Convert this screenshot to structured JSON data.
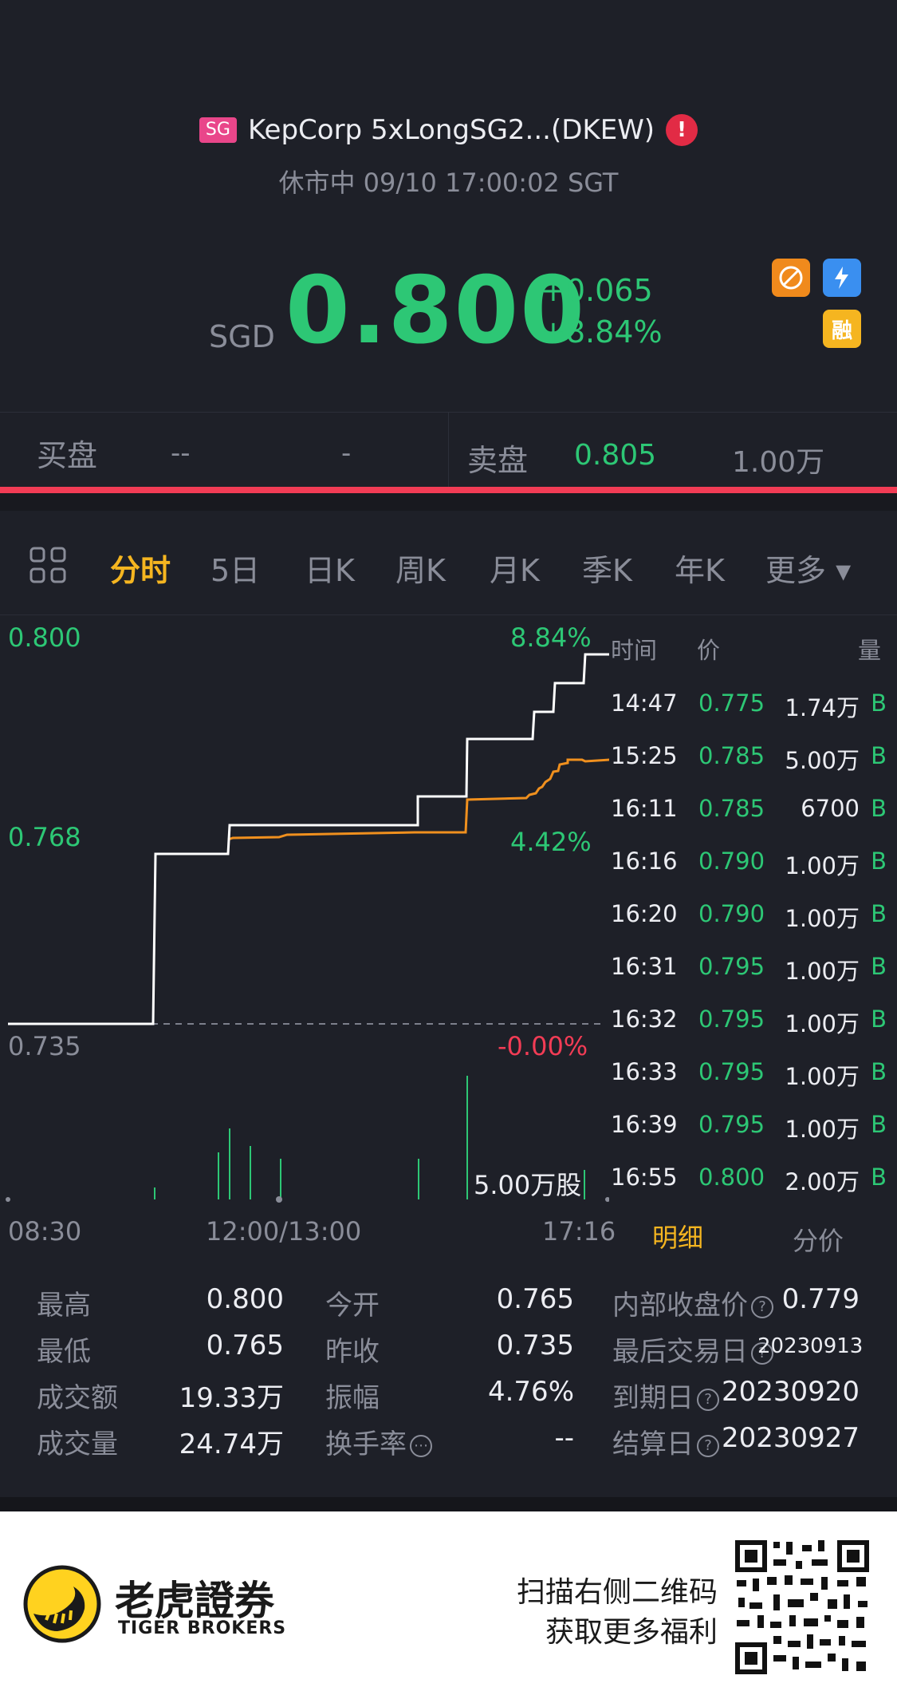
{
  "header": {
    "market_badge": "SG",
    "stock_name": "KepCorp 5xLongSG2...(DKEW)",
    "alert_icon": "alert-icon",
    "status": "休市中 09/10 17:00:02 SGT"
  },
  "quote": {
    "currency": "SGD",
    "price": "0.800",
    "change": "+0.065",
    "change_pct": "+8.84%",
    "icons": [
      "no-short-icon",
      "lightning-icon",
      "margin-icon"
    ],
    "margin_label": "融"
  },
  "order_book": {
    "bid_label": "买盘",
    "bid_price": "--",
    "bid_size": "-",
    "ask_label": "卖盘",
    "ask_price": "0.805",
    "ask_size": "1.00万"
  },
  "tabs": [
    {
      "label": "分时",
      "active": true
    },
    {
      "label": "5日"
    },
    {
      "label": "日K"
    },
    {
      "label": "周K"
    },
    {
      "label": "月K"
    },
    {
      "label": "季K"
    },
    {
      "label": "年K"
    },
    {
      "label": "更多 ▾"
    }
  ],
  "chart_data": {
    "type": "line",
    "y_left_labels": [
      "0.800",
      "0.768",
      "0.735"
    ],
    "y_right_labels": [
      "8.84%",
      "4.42%",
      "-0.00%"
    ],
    "x_labels": [
      "08:30",
      "12:00/13:00",
      "17:16"
    ],
    "volume_label": "5.00万股",
    "prev_close": 0.735,
    "ylim": [
      0.735,
      0.8
    ]
  },
  "trades": {
    "headers": {
      "time": "时间",
      "price": "价",
      "volume": "量"
    },
    "rows": [
      {
        "time": "14:47",
        "price": "0.775",
        "volume": "1.74万",
        "side": "B"
      },
      {
        "time": "15:25",
        "price": "0.785",
        "volume": "5.00万",
        "side": "B"
      },
      {
        "time": "16:11",
        "price": "0.785",
        "volume": "6700",
        "side": "B"
      },
      {
        "time": "16:16",
        "price": "0.790",
        "volume": "1.00万",
        "side": "B"
      },
      {
        "time": "16:20",
        "price": "0.790",
        "volume": "1.00万",
        "side": "B"
      },
      {
        "time": "16:31",
        "price": "0.795",
        "volume": "1.00万",
        "side": "B"
      },
      {
        "time": "16:32",
        "price": "0.795",
        "volume": "1.00万",
        "side": "B"
      },
      {
        "time": "16:33",
        "price": "0.795",
        "volume": "1.00万",
        "side": "B"
      },
      {
        "time": "16:39",
        "price": "0.795",
        "volume": "1.00万",
        "side": "B"
      },
      {
        "time": "16:55",
        "price": "0.800",
        "volume": "2.00万",
        "side": "B"
      }
    ],
    "tab_detail": "明细",
    "tab_price_dist": "分价"
  },
  "stats": {
    "high_label": "最高",
    "high": "0.800",
    "low_label": "最低",
    "low": "0.765",
    "turnover_label": "成交额",
    "turnover": "19.33万",
    "volume_label": "成交量",
    "volume": "24.74万",
    "open_label": "今开",
    "open": "0.765",
    "prev_close_label": "昨收",
    "prev_close": "0.735",
    "amplitude_label": "振幅",
    "amplitude": "4.76%",
    "turnover_rate_label": "换手率",
    "turnover_rate": "--",
    "internal_close_label": "内部收盘价",
    "internal_close": "0.779",
    "last_trade_label": "最后交易日",
    "last_trade": "20230913",
    "expiry_label": "到期日",
    "expiry": "20230920",
    "settle_label": "结算日",
    "settle": "20230927"
  },
  "footer": {
    "brand_cn": "老虎證券",
    "brand_en": "TIGER BROKERS",
    "scan_line1": "扫描右侧二维码",
    "scan_line2": "获取更多福利"
  }
}
